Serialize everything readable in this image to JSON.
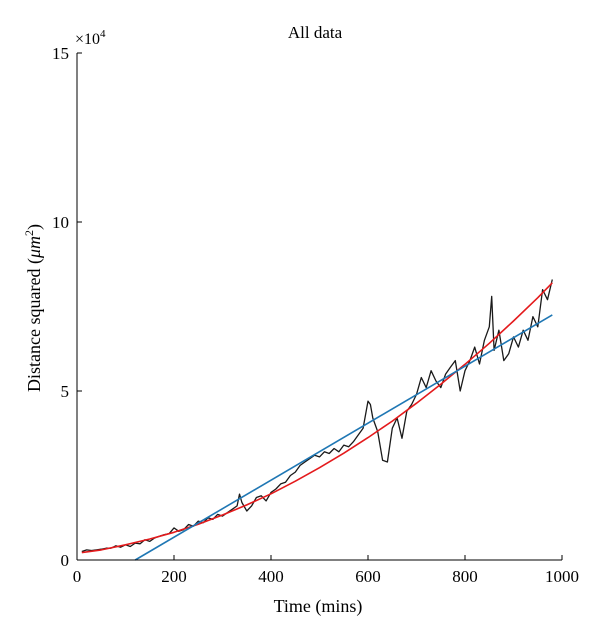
{
  "chart_data": {
    "type": "line",
    "title": "All data",
    "xlabel": "Time (mins)",
    "ylabel_prefix": "Distance squared (",
    "ylabel_unit": "μm",
    "ylabel_exp": "2",
    "ylabel_suffix": ")",
    "y_multiplier_base": "×10",
    "y_multiplier_exp": "4",
    "xlim": [
      0,
      1000
    ],
    "ylim": [
      0,
      15
    ],
    "x_ticks": [
      0,
      200,
      400,
      600,
      800,
      1000
    ],
    "x_tick_labels": [
      "0",
      "200",
      "400",
      "600",
      "800",
      "1000"
    ],
    "y_ticks": [
      0,
      5,
      10,
      15
    ],
    "y_tick_labels": [
      "0",
      "5",
      "10",
      "15"
    ],
    "grid": false,
    "colors": {
      "data": "#1a1a1a",
      "quadratic_fit": "#e41a1c",
      "linear_fit": "#1f77b4"
    },
    "series": [
      {
        "kind": "measured",
        "x": [
          10,
          20,
          30,
          40,
          50,
          60,
          70,
          80,
          90,
          100,
          110,
          120,
          130,
          140,
          150,
          160,
          170,
          180,
          190,
          200,
          210,
          220,
          230,
          240,
          250,
          260,
          270,
          280,
          290,
          300,
          310,
          320,
          330,
          335,
          340,
          350,
          360,
          370,
          380,
          390,
          400,
          410,
          420,
          430,
          440,
          450,
          460,
          470,
          480,
          490,
          500,
          510,
          520,
          530,
          540,
          550,
          560,
          570,
          580,
          590,
          600,
          605,
          610,
          620,
          630,
          640,
          650,
          660,
          670,
          680,
          690,
          700,
          710,
          720,
          730,
          740,
          750,
          760,
          770,
          780,
          790,
          800,
          810,
          820,
          830,
          840,
          850,
          855,
          860,
          870,
          880,
          890,
          900,
          910,
          920,
          930,
          940,
          950,
          960,
          970,
          980
        ],
        "y": [
          0.25,
          0.3,
          0.28,
          0.3,
          0.32,
          0.35,
          0.35,
          0.42,
          0.38,
          0.45,
          0.4,
          0.5,
          0.48,
          0.6,
          0.55,
          0.65,
          0.7,
          0.75,
          0.78,
          0.95,
          0.85,
          0.9,
          1.05,
          1.0,
          1.15,
          1.1,
          1.25,
          1.2,
          1.35,
          1.3,
          1.4,
          1.5,
          1.6,
          1.95,
          1.7,
          1.45,
          1.6,
          1.85,
          1.9,
          1.75,
          2.0,
          2.1,
          2.25,
          2.3,
          2.5,
          2.6,
          2.8,
          2.9,
          3.0,
          3.1,
          3.05,
          3.2,
          3.15,
          3.3,
          3.2,
          3.4,
          3.35,
          3.5,
          3.7,
          3.9,
          4.7,
          4.6,
          4.2,
          3.8,
          2.95,
          2.9,
          3.9,
          4.2,
          3.6,
          4.4,
          4.6,
          4.9,
          5.4,
          5.1,
          5.6,
          5.3,
          5.1,
          5.5,
          5.7,
          5.9,
          5.0,
          5.6,
          5.9,
          6.3,
          5.8,
          6.5,
          6.9,
          7.8,
          6.2,
          6.8,
          5.9,
          6.1,
          6.6,
          6.3,
          6.8,
          6.5,
          7.2,
          6.9,
          8.0,
          7.7,
          8.3
        ]
      },
      {
        "kind": "quadratic_fit",
        "x": [
          10,
          50,
          100,
          150,
          200,
          250,
          300,
          350,
          400,
          450,
          500,
          550,
          600,
          650,
          700,
          750,
          800,
          850,
          900,
          950,
          980
        ],
        "y": [
          0.22,
          0.3,
          0.45,
          0.62,
          0.82,
          1.06,
          1.33,
          1.63,
          1.96,
          2.33,
          2.73,
          3.16,
          3.62,
          4.11,
          4.64,
          5.2,
          5.79,
          6.41,
          7.07,
          7.76,
          8.2
        ]
      },
      {
        "kind": "linear_fit",
        "x": [
          120,
          980
        ],
        "y": [
          0.0,
          7.25
        ]
      }
    ]
  }
}
